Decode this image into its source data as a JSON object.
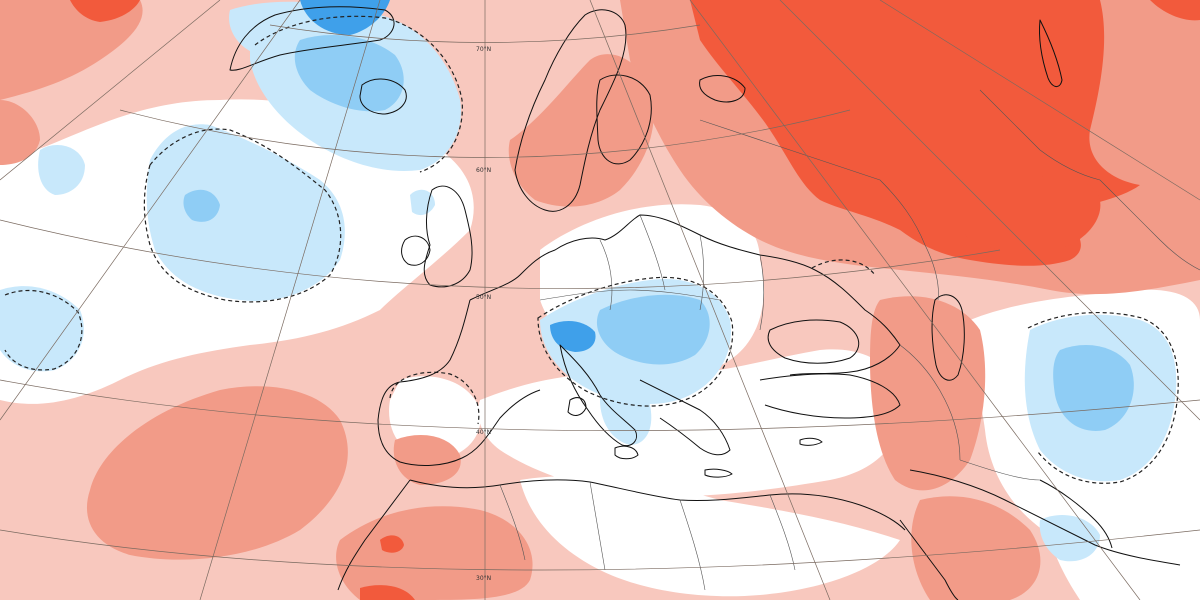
{
  "map": {
    "projection": "polar-stereographic-conic",
    "graticule_labels": [
      "70°N",
      "60°N",
      "50°N",
      "40°N",
      "30°N"
    ],
    "palette": {
      "strong_warm": "#f25a3c",
      "moderate_warm": "#f29b88",
      "weak_warm": "#f8c8be",
      "neutral": "#ffffff",
      "weak_cool": "#c8e8fb",
      "moderate_cool": "#8fcdf5",
      "strong_cool": "#3fa0ea",
      "coastline": "#111111",
      "border": "#555555",
      "graticule": "#7a6a60",
      "zero_contour": "#222222"
    },
    "layers": [
      "shading",
      "zero-contour-dashed",
      "coastlines",
      "borders",
      "graticule"
    ]
  }
}
